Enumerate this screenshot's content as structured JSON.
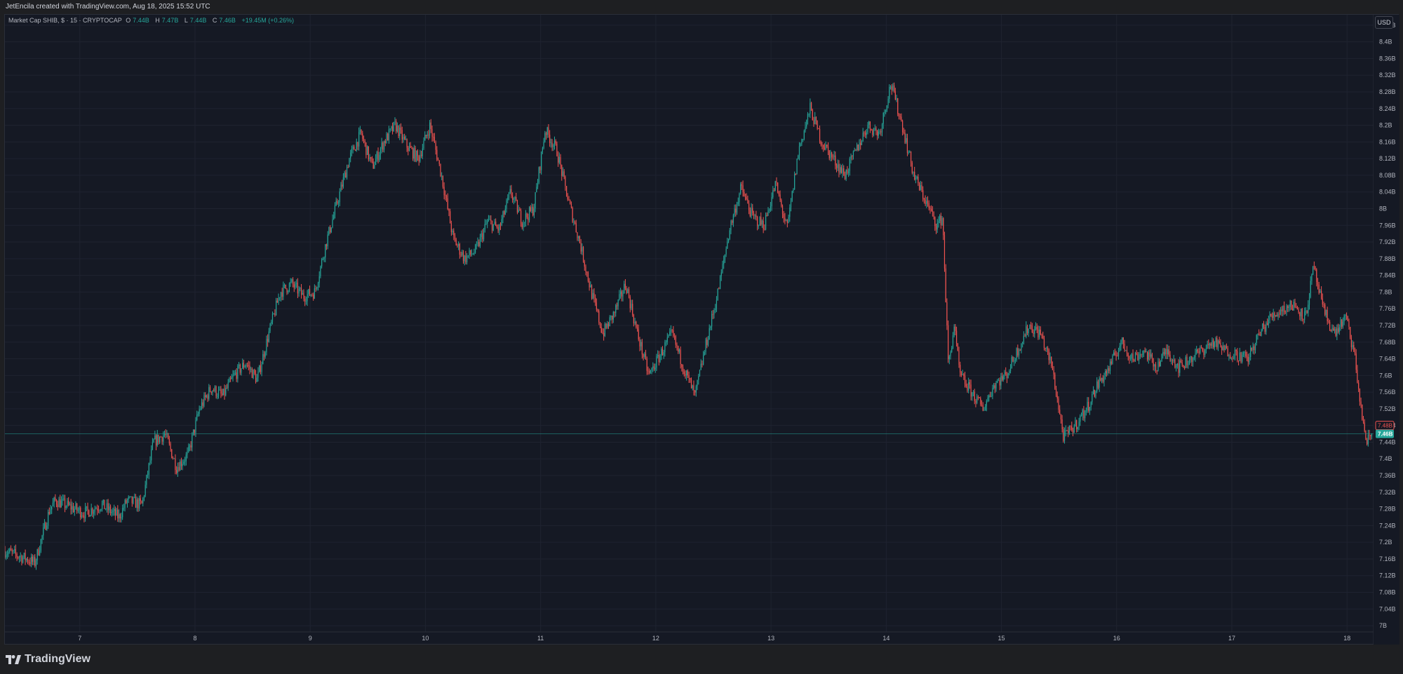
{
  "header": {
    "attribution": "JetEncila created with TradingView.com, Aug 18, 2025 15:52 UTC"
  },
  "legend": {
    "symbol": "Market Cap SHIB, $ · 15 · CRYPTOCAP",
    "open_label": "O",
    "open": "7.44B",
    "high_label": "H",
    "high": "7.47B",
    "low_label": "L",
    "low": "7.44B",
    "close_label": "C",
    "close": "7.46B",
    "change": "+19.45M (+0.26%)"
  },
  "currency_button": "USD",
  "footer": {
    "brand": "TradingView"
  },
  "colors": {
    "up": "#26a69a",
    "down": "#ef5350",
    "background": "#151924",
    "grid": "#1f2330",
    "axis_text": "#b2b5be"
  },
  "chart_data": {
    "type": "candlestick",
    "title": "Market Cap SHIB, $ · 15 · CRYPTOCAP",
    "timeframe": "15",
    "x_ticks": [
      "7",
      "8",
      "9",
      "10",
      "11",
      "12",
      "13",
      "14",
      "15",
      "16",
      "17",
      "18"
    ],
    "y_ticks": [
      "8.44B",
      "8.4B",
      "8.36B",
      "8.32B",
      "8.28B",
      "8.24B",
      "8.2B",
      "8.16B",
      "8.12B",
      "8.08B",
      "8.04B",
      "8B",
      "7.96B",
      "7.92B",
      "7.88B",
      "7.84B",
      "7.8B",
      "7.76B",
      "7.72B",
      "7.68B",
      "7.64B",
      "7.6B",
      "7.56B",
      "7.52B",
      "7.48B",
      "7.44B",
      "7.4B",
      "7.36B",
      "7.32B",
      "7.28B",
      "7.24B",
      "7.2B",
      "7.16B",
      "7.12B",
      "7.08B",
      "7.04B",
      "7B"
    ],
    "ylim": [
      6.985,
      8.465
    ],
    "xlim": [
      6.35,
      18.23
    ],
    "last_price": 7.46,
    "last_price_label": "7.46B",
    "prev_close_label": "7.48B",
    "path_x": [
      6.35,
      6.55,
      6.62,
      6.75,
      6.8,
      7.05,
      7.2,
      7.35,
      7.42,
      7.55,
      7.65,
      7.75,
      7.85,
      7.95,
      8.05,
      8.15,
      8.25,
      8.35,
      8.45,
      8.55,
      8.65,
      8.75,
      8.85,
      8.95,
      9.05,
      9.15,
      9.25,
      9.35,
      9.45,
      9.55,
      9.65,
      9.75,
      9.85,
      9.95,
      10.05,
      10.15,
      10.25,
      10.35,
      10.45,
      10.55,
      10.65,
      10.75,
      10.85,
      10.95,
      11.05,
      11.15,
      11.25,
      11.35,
      11.45,
      11.55,
      11.65,
      11.75,
      11.85,
      11.95,
      12.05,
      12.15,
      12.25,
      12.35,
      12.45,
      12.55,
      12.65,
      12.75,
      12.85,
      12.95,
      13.05,
      13.15,
      13.25,
      13.35,
      13.45,
      13.55,
      13.65,
      13.75,
      13.85,
      13.95,
      14.05,
      14.15,
      14.25,
      14.35,
      14.45,
      14.5,
      14.55,
      14.6,
      14.65,
      14.75,
      14.85,
      14.95,
      15.05,
      15.15,
      15.25,
      15.35,
      15.45,
      15.55,
      15.65,
      15.75,
      15.85,
      15.95,
      16.05,
      16.15,
      16.25,
      16.35,
      16.45,
      16.55,
      16.65,
      16.75,
      16.85,
      16.95,
      17.05,
      17.15,
      17.25,
      17.35,
      17.45,
      17.55,
      17.65,
      17.72,
      17.8,
      17.9,
      18.0,
      18.08,
      18.13,
      18.18,
      18.23
    ],
    "path_y": [
      7.18,
      7.16,
      7.15,
      7.28,
      7.3,
      7.27,
      7.29,
      7.26,
      7.3,
      7.29,
      7.44,
      7.46,
      7.38,
      7.41,
      7.52,
      7.57,
      7.55,
      7.6,
      7.63,
      7.59,
      7.7,
      7.8,
      7.82,
      7.79,
      7.8,
      7.92,
      8.02,
      8.12,
      8.18,
      8.1,
      8.16,
      8.2,
      8.15,
      8.12,
      8.2,
      8.08,
      7.93,
      7.88,
      7.9,
      7.97,
      7.95,
      8.04,
      7.97,
      8.0,
      8.19,
      8.14,
      8.02,
      7.92,
      7.8,
      7.7,
      7.75,
      7.82,
      7.7,
      7.6,
      7.65,
      7.7,
      7.62,
      7.55,
      7.68,
      7.8,
      7.95,
      8.05,
      7.98,
      7.96,
      8.06,
      7.95,
      8.14,
      8.24,
      8.16,
      8.12,
      8.08,
      8.14,
      8.2,
      8.18,
      8.3,
      8.2,
      8.08,
      8.02,
      7.96,
      7.98,
      7.62,
      7.72,
      7.6,
      7.56,
      7.52,
      7.58,
      7.6,
      7.66,
      7.72,
      7.7,
      7.62,
      7.45,
      7.48,
      7.52,
      7.58,
      7.62,
      7.68,
      7.64,
      7.66,
      7.62,
      7.66,
      7.62,
      7.64,
      7.66,
      7.68,
      7.66,
      7.65,
      7.64,
      7.7,
      7.74,
      7.76,
      7.77,
      7.74,
      7.86,
      7.76,
      7.7,
      7.74,
      7.64,
      7.52,
      7.44,
      7.46
    ]
  }
}
